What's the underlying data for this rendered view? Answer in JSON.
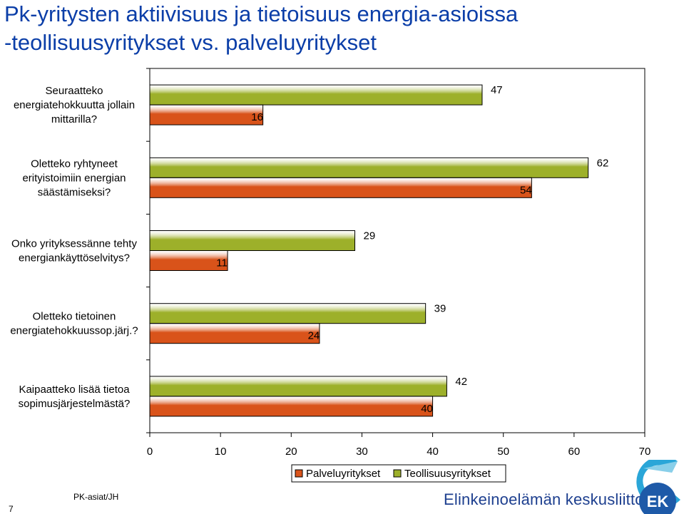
{
  "title": {
    "line1": "Pk-yritysten aktiivisuus ja tietoisuus energia-asioissa",
    "line2": "-teollisuusyritykset vs. palveluyritykset"
  },
  "colors": {
    "title": "#0b3ea8",
    "palvelu": "#d9531a",
    "teollisuus": "#9db02a",
    "brand": "#1d3f8f"
  },
  "chart_data": {
    "type": "bar",
    "orientation": "horizontal",
    "categories": [
      [
        "Seuraatteko",
        "energiatehokkuutta jollain",
        "mittarilla?"
      ],
      [
        "Oletteko ryhtyneet",
        "erityistoimiin energian",
        "säästämiseksi?"
      ],
      [
        "Onko yrityksessänne tehty",
        "energiankäyttöselvitys?"
      ],
      [
        "Oletteko tietoinen",
        "energiatehokkuussop.järj.?"
      ],
      [
        "Kaipaatteko lisää tietoa",
        "sopimusjärjestelmästä?"
      ]
    ],
    "series": [
      {
        "name": "Palveluyritykset",
        "color": "#d9531a",
        "values": [
          16,
          54,
          11,
          24,
          40
        ]
      },
      {
        "name": "Teollisuusyritykset",
        "color": "#9db02a",
        "values": [
          47,
          62,
          29,
          39,
          42
        ]
      }
    ],
    "xlim": [
      0,
      70
    ],
    "xticks": [
      0,
      10,
      20,
      30,
      40,
      50,
      60,
      70
    ],
    "legend_position": "bottom",
    "grid": false
  },
  "footer": {
    "source": "PK-asiat/JH",
    "page_number": "7",
    "brand": "Elinkeinoelämän keskusliitto",
    "logo_text": "EK"
  }
}
